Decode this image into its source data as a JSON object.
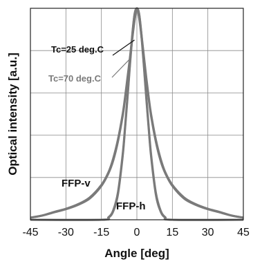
{
  "chart_data": {
    "type": "line",
    "title": "",
    "xlabel": "Angle [deg]",
    "ylabel": "Optical intensity [a.u.]",
    "xlim": [
      -45,
      45
    ],
    "ylim": [
      0,
      1
    ],
    "xticks": [
      -45,
      -30,
      -15,
      0,
      15,
      30,
      45
    ],
    "ytick_count": 5,
    "y_tick_labels_shown": false,
    "grid": true,
    "legend": "none",
    "series_color": "#7a7a7a",
    "series": [
      {
        "condition": "Tc=25 deg.C",
        "profile": "FFP-v",
        "x": [
          -45,
          -40,
          -35,
          -30,
          -25,
          -20,
          -15,
          -12,
          -10,
          -8,
          -6,
          -5,
          -4,
          -3,
          -2,
          -1,
          0,
          1,
          2,
          3,
          4,
          5,
          6,
          8,
          10,
          12,
          15,
          20,
          25,
          30,
          35,
          40,
          45
        ],
        "y": [
          0.01,
          0.02,
          0.035,
          0.05,
          0.07,
          0.1,
          0.16,
          0.22,
          0.28,
          0.37,
          0.49,
          0.57,
          0.66,
          0.75,
          0.85,
          0.94,
          1.0,
          0.95,
          0.86,
          0.76,
          0.66,
          0.57,
          0.49,
          0.37,
          0.28,
          0.22,
          0.16,
          0.1,
          0.07,
          0.05,
          0.035,
          0.02,
          0.01
        ]
      },
      {
        "condition": "Tc=70 deg.C",
        "profile": "FFP-v",
        "x": [
          -45,
          -40,
          -35,
          -30,
          -25,
          -20,
          -15,
          -12,
          -10,
          -8,
          -6,
          -5,
          -4,
          -3,
          -2,
          -1,
          0,
          1,
          2,
          3,
          4,
          5,
          6,
          8,
          10,
          12,
          15,
          20,
          25,
          30,
          35,
          40,
          45
        ],
        "y": [
          0.01,
          0.02,
          0.037,
          0.052,
          0.073,
          0.105,
          0.165,
          0.225,
          0.29,
          0.38,
          0.5,
          0.58,
          0.67,
          0.76,
          0.86,
          0.945,
          1.0,
          0.955,
          0.87,
          0.77,
          0.67,
          0.58,
          0.5,
          0.38,
          0.29,
          0.225,
          0.165,
          0.105,
          0.073,
          0.052,
          0.037,
          0.02,
          0.01
        ]
      },
      {
        "condition": "Tc=25 deg.C",
        "profile": "FFP-h",
        "x": [
          -45,
          -15,
          -12,
          -10,
          -8,
          -6,
          -5,
          -4,
          -3,
          -2,
          -1,
          0,
          1,
          2,
          3,
          4,
          5,
          6,
          8,
          10,
          12,
          15,
          45
        ],
        "y": [
          0.0,
          0.0,
          0.01,
          0.04,
          0.12,
          0.3,
          0.43,
          0.57,
          0.72,
          0.86,
          0.97,
          1.0,
          0.97,
          0.86,
          0.72,
          0.57,
          0.43,
          0.3,
          0.12,
          0.04,
          0.01,
          0.0,
          0.0
        ]
      },
      {
        "condition": "Tc=70 deg.C",
        "profile": "FFP-h",
        "x": [
          -45,
          -15,
          -12,
          -10,
          -8,
          -6,
          -5,
          -4,
          -3,
          -2,
          -1,
          0,
          1,
          2,
          3,
          4,
          5,
          6,
          8,
          10,
          12,
          15,
          45
        ],
        "y": [
          0.0,
          0.0,
          0.012,
          0.045,
          0.13,
          0.31,
          0.44,
          0.58,
          0.73,
          0.87,
          0.97,
          1.0,
          0.97,
          0.87,
          0.73,
          0.58,
          0.44,
          0.31,
          0.13,
          0.045,
          0.012,
          0.0,
          0.0
        ]
      }
    ],
    "annotations": [
      {
        "text": "Tc=25 deg.C",
        "color": "#111111",
        "points_to": {
          "x": -1,
          "y": 0.85
        }
      },
      {
        "text": "Tc=70 deg.C",
        "color": "#7a7a7a",
        "points_to": {
          "x": -3,
          "y": 0.76
        }
      },
      {
        "text": "FFP-v",
        "color": "#111111"
      },
      {
        "text": "FFP-h",
        "color": "#111111"
      }
    ]
  }
}
